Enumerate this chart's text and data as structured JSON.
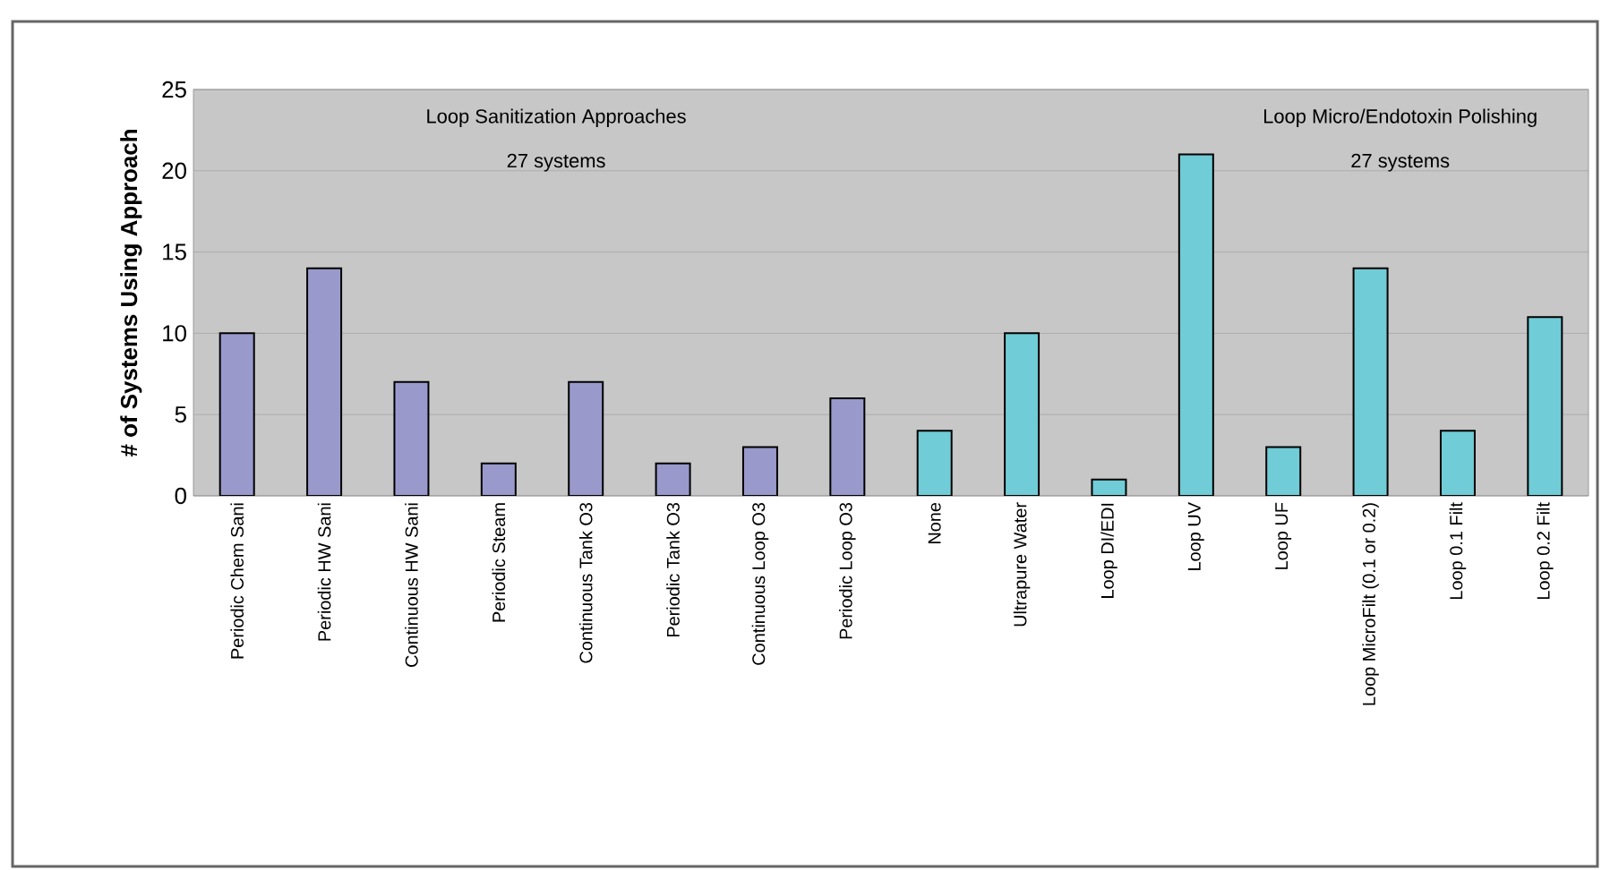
{
  "chart_data": {
    "type": "bar",
    "ylabel": "# of Systems Using Approach",
    "categories": [
      "Periodic Chem Sani",
      "Periodic HW Sani",
      "Continuous HW Sani",
      "Periodic Steam",
      "Continuous Tank O3",
      "Periodic Tank O3",
      "Continuous Loop O3",
      "Periodic Loop O3",
      "None",
      "Ultrapure Water",
      "Loop DI/EDI",
      "Loop UV",
      "Loop UF",
      "Loop MicroFilt (0.1 or 0.2)",
      "Loop 0.1 Filt",
      "Loop 0.2 Filt"
    ],
    "values": [
      10,
      14,
      7,
      2,
      7,
      2,
      3,
      6,
      4,
      10,
      1,
      21,
      3,
      14,
      4,
      11
    ],
    "colors": [
      "#9999cc",
      "#9999cc",
      "#9999cc",
      "#9999cc",
      "#9999cc",
      "#9999cc",
      "#9999cc",
      "#9999cc",
      "#70ccd6",
      "#70ccd6",
      "#70ccd6",
      "#70ccd6",
      "#70ccd6",
      "#70ccd6",
      "#70ccd6",
      "#70ccd6"
    ],
    "ylim": [
      0,
      25
    ],
    "yticks": [
      0,
      5,
      10,
      15,
      20,
      25
    ],
    "grid": "y",
    "annotations": [
      "Loop Sanitization Approaches",
      "27 systems",
      "Loop Micro/Endotoxin Polishing",
      "27 systems"
    ]
  }
}
